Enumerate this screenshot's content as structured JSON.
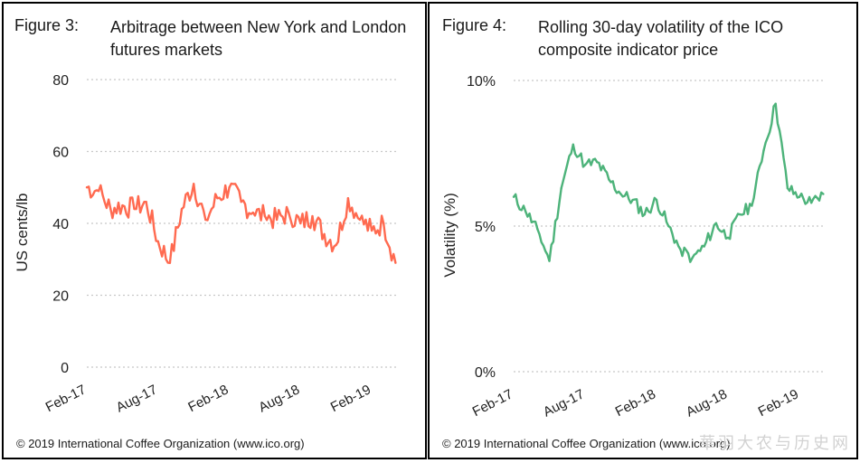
{
  "colors": {
    "series_left": "#ff6a50",
    "series_right": "#4db37a",
    "gridline": "#c8c8c8"
  },
  "chart_data": [
    {
      "type": "line",
      "figure_label": "Figure 3:",
      "title": "Arbitrage between New York and London futures markets",
      "ylabel": "US cents/lb",
      "xlabel": "",
      "ylim": [
        0,
        80
      ],
      "y_ticks": [
        "80",
        "60",
        "40",
        "20",
        "0"
      ],
      "x_ticks": [
        "Feb-17",
        "Aug-17",
        "Feb-18",
        "Aug-18",
        "Feb-19"
      ],
      "grid": "horizontal dotted",
      "series": [
        {
          "x": [
            "2017-02",
            "2017-03",
            "2017-04",
            "2017-05",
            "2017-06",
            "2017-07",
            "2017-08",
            "2017-09",
            "2017-10",
            "2017-11",
            "2017-12",
            "2018-01",
            "2018-02",
            "2018-03",
            "2018-04",
            "2018-05",
            "2018-06",
            "2018-07",
            "2018-08",
            "2018-09",
            "2018-10",
            "2018-11",
            "2018-12",
            "2019-01",
            "2019-02",
            "2019-03",
            "2019-04"
          ],
          "y": [
            50,
            49,
            44,
            45,
            44,
            46,
            35,
            29,
            44,
            51,
            41,
            47,
            50,
            46,
            43,
            42,
            41,
            43,
            40,
            42,
            37,
            34,
            47,
            41,
            38,
            40,
            29
          ]
        }
      ],
      "copyright": "© 2019 International Coffee Organization (www.ico.org)"
    },
    {
      "type": "line",
      "figure_label": "Figure 4:",
      "title": "Rolling 30-day volatility of the ICO composite indicator price",
      "ylabel": "Volatility (%)",
      "xlabel": "",
      "ylim": [
        0,
        10
      ],
      "y_ticks": [
        "10%",
        "5%",
        "0%"
      ],
      "x_ticks": [
        "Feb-17",
        "Aug-17",
        "Feb-18",
        "Aug-18",
        "Feb-19"
      ],
      "grid": "horizontal dotted",
      "series": [
        {
          "x": [
            "2017-02",
            "2017-03",
            "2017-04",
            "2017-05",
            "2017-06",
            "2017-07",
            "2017-08",
            "2017-09",
            "2017-10",
            "2017-11",
            "2017-12",
            "2018-01",
            "2018-02",
            "2018-03",
            "2018-04",
            "2018-05",
            "2018-06",
            "2018-07",
            "2018-08",
            "2018-09",
            "2018-10",
            "2018-11",
            "2018-12",
            "2019-01",
            "2019-02",
            "2019-03",
            "2019-04"
          ],
          "y": [
            6.0,
            5.5,
            4.9,
            3.8,
            6.3,
            7.8,
            7.1,
            7.2,
            6.6,
            6.1,
            5.9,
            5.4,
            5.9,
            5.0,
            4.2,
            3.9,
            4.3,
            5.1,
            4.6,
            5.4,
            5.7,
            7.6,
            9.2,
            6.3,
            6.0,
            5.8,
            6.1
          ]
        }
      ],
      "copyright": "© 2019 International Coffee Organization (www.ico.org)"
    }
  ],
  "watermark": "華羽大农与历史网"
}
